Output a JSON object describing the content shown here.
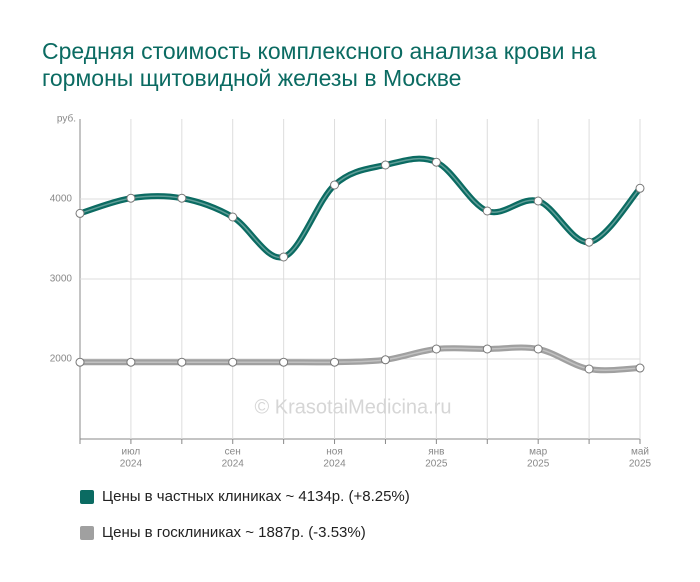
{
  "chart_data": {
    "type": "line",
    "title": "Средняя стоимость комплексного анализа крови на гормоны щитовидной железы в Москве",
    "y_unit": "руб.",
    "watermark": "© KrasotaiMedicina.ru",
    "categories": [
      null,
      [
        "июл",
        "2024"
      ],
      null,
      [
        "сен",
        "2024"
      ],
      null,
      [
        "ноя",
        "2024"
      ],
      null,
      [
        "янв",
        "2025"
      ],
      null,
      [
        "мар",
        "2025"
      ],
      null,
      [
        "май",
        "2025"
      ]
    ],
    "series": [
      {
        "name": "Цены в частных клиниках ~ 4134р. (+8.25%)",
        "color": "#0b6b62",
        "values": [
          3820,
          4010,
          4010,
          3775,
          3275,
          4175,
          4425,
          4460,
          3850,
          3975,
          3460,
          4134
        ]
      },
      {
        "name": "Цены в госклиниках ~ 1887р. (-3.53%)",
        "color": "#a0a0a0",
        "values": [
          1960,
          1960,
          1960,
          1960,
          1960,
          1960,
          1990,
          2125,
          2125,
          2125,
          1875,
          1887
        ]
      }
    ],
    "ylim": [
      1000,
      5000
    ],
    "yticks": [
      2000,
      3000,
      4000
    ],
    "grid": true
  }
}
